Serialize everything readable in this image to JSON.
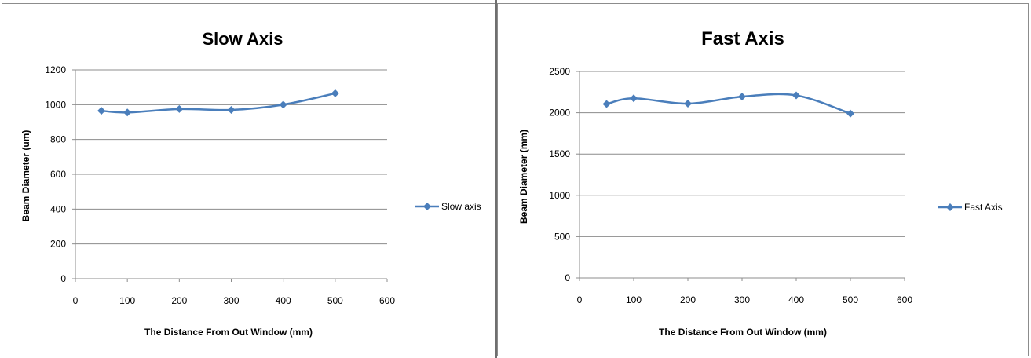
{
  "charts": [
    {
      "title": "Slow Axis",
      "xlabel": "The Distance From Out Window (mm)",
      "ylabel": "Beam Diameter (um)",
      "legend": "Slow axis"
    },
    {
      "title": "Fast Axis",
      "xlabel": "The Distance From Out Window (mm)",
      "ylabel": "Beam Diameter (mm)",
      "legend": "Fast Axis"
    }
  ],
  "chart_data": [
    {
      "type": "line",
      "title": "Slow Axis",
      "xlabel": "The Distance From Out Window (mm)",
      "ylabel": "Beam Diameter (um)",
      "xlim": [
        0,
        600
      ],
      "ylim": [
        0,
        1200
      ],
      "xticks": [
        0,
        100,
        200,
        300,
        400,
        500,
        600
      ],
      "yticks": [
        0,
        200,
        400,
        600,
        800,
        1000,
        1200
      ],
      "grid": "horizontal",
      "legend_position": "right",
      "smooth": true,
      "series": [
        {
          "name": "Slow axis",
          "x": [
            50,
            100,
            200,
            300,
            400,
            500
          ],
          "y": [
            965,
            955,
            975,
            970,
            1000,
            1065
          ]
        }
      ]
    },
    {
      "type": "line",
      "title": "Fast Axis",
      "xlabel": "The Distance From Out Window (mm)",
      "ylabel": "Beam Diameter (mm)",
      "xlim": [
        0,
        600
      ],
      "ylim": [
        0,
        2500
      ],
      "xticks": [
        0,
        100,
        200,
        300,
        400,
        500,
        600
      ],
      "yticks": [
        0,
        500,
        1000,
        1500,
        2000,
        2500
      ],
      "grid": "horizontal",
      "legend_position": "right",
      "smooth": true,
      "series": [
        {
          "name": "Fast Axis",
          "x": [
            50,
            100,
            200,
            300,
            400,
            500
          ],
          "y": [
            2105,
            2175,
            2110,
            2195,
            2210,
            1990
          ]
        }
      ]
    }
  ],
  "colors": {
    "series": "#4a7ebb",
    "grid": "#8c8c8c",
    "axis": "#8c8c8c"
  }
}
